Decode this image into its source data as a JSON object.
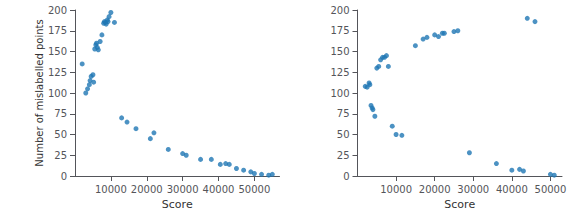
{
  "chart_data": [
    {
      "type": "scatter",
      "xlabel": "Score",
      "ylabel": "Number of mislabelled points",
      "x": [
        2000,
        3000,
        3500,
        4000,
        4200,
        4500,
        5000,
        5200,
        5500,
        5800,
        6000,
        6200,
        6500,
        7000,
        7500,
        8000,
        8200,
        8500,
        8700,
        9000,
        9200,
        9500,
        10000,
        11000,
        13000,
        14500,
        17000,
        21000,
        22000,
        26000,
        30000,
        31000,
        35000,
        38000,
        40500,
        42000,
        43000,
        45000,
        47000,
        49000,
        50000,
        52000,
        54000,
        55000
      ],
      "values": [
        135,
        100,
        105,
        110,
        115,
        120,
        122,
        113,
        153,
        158,
        160,
        155,
        152,
        162,
        170,
        184,
        186,
        185,
        183,
        188,
        186,
        192,
        197,
        185,
        70,
        65,
        57,
        45,
        52,
        32,
        27,
        25,
        20,
        20,
        14,
        15,
        14,
        9,
        7,
        5,
        3,
        2,
        1,
        2
      ],
      "xlim": [
        0,
        57000
      ],
      "ylim": [
        0,
        200
      ],
      "xticks": [
        10000,
        20000,
        30000,
        40000,
        50000
      ],
      "yticks": [
        0,
        25,
        50,
        75,
        100,
        125,
        150,
        175,
        200
      ],
      "color": "#1f77b4",
      "grid": false
    },
    {
      "type": "scatter",
      "xlabel": "Score",
      "x": [
        2000,
        2500,
        3000,
        3200,
        3500,
        3800,
        4000,
        4500,
        5000,
        5500,
        6000,
        6500,
        7000,
        7500,
        8000,
        9000,
        10000,
        11500,
        15000,
        17000,
        18000,
        20000,
        21000,
        22000,
        22500,
        25000,
        26000,
        29000,
        36000,
        40000,
        42000,
        43000,
        44000,
        46000,
        50000,
        51000
      ],
      "values": [
        108,
        107,
        112,
        110,
        85,
        82,
        80,
        72,
        130,
        132,
        140,
        143,
        143,
        145,
        132,
        60,
        50,
        49,
        157,
        165,
        167,
        170,
        168,
        172,
        172,
        174,
        175,
        28,
        15,
        7,
        8,
        6,
        190,
        186,
        2,
        1
      ],
      "xlim": [
        0,
        53000
      ],
      "ylim": [
        0,
        200
      ],
      "xticks": [
        10000,
        20000,
        30000,
        40000,
        50000
      ],
      "yticks": [
        0,
        25,
        50,
        75,
        100,
        125,
        150,
        175,
        200
      ],
      "color": "#1f77b4",
      "grid": false
    }
  ]
}
